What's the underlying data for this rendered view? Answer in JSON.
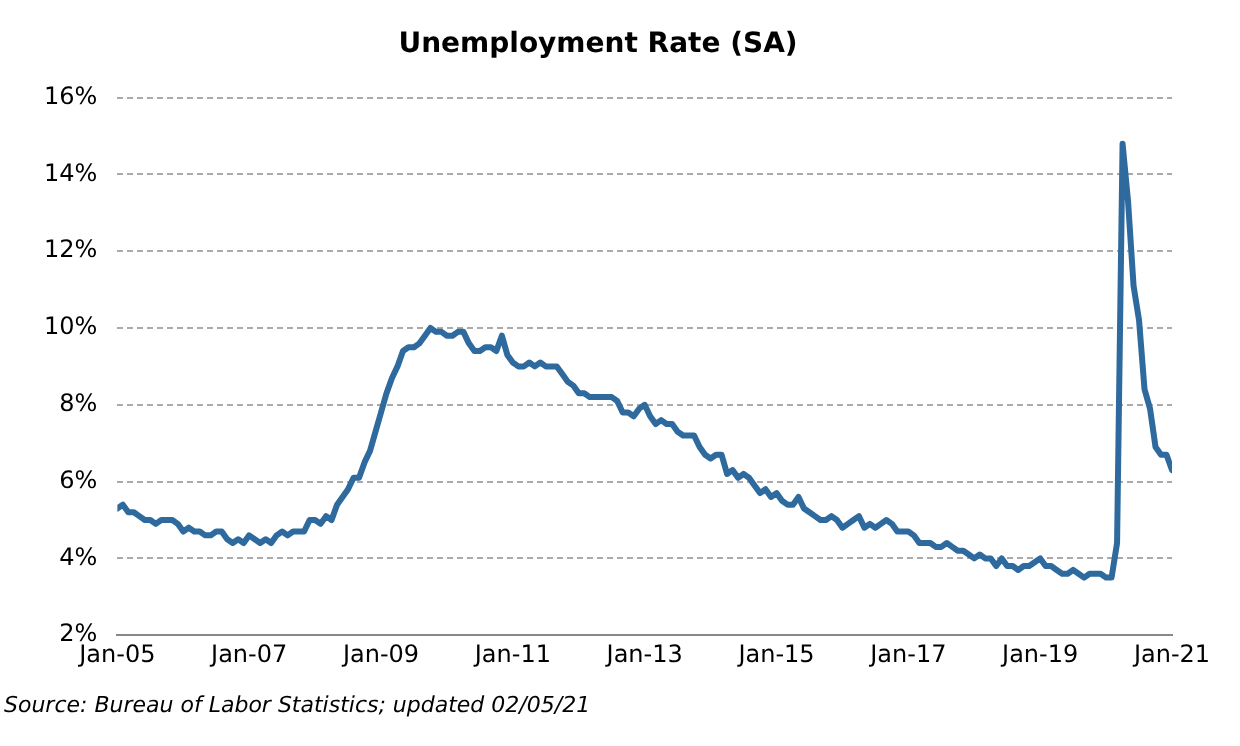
{
  "chart_data": {
    "type": "line",
    "title": "Unemployment Rate (SA)",
    "x": [
      "2005-01",
      "2005-02",
      "2005-03",
      "2005-04",
      "2005-05",
      "2005-06",
      "2005-07",
      "2005-08",
      "2005-09",
      "2005-10",
      "2005-11",
      "2005-12",
      "2006-01",
      "2006-02",
      "2006-03",
      "2006-04",
      "2006-05",
      "2006-06",
      "2006-07",
      "2006-08",
      "2006-09",
      "2006-10",
      "2006-11",
      "2006-12",
      "2007-01",
      "2007-02",
      "2007-03",
      "2007-04",
      "2007-05",
      "2007-06",
      "2007-07",
      "2007-08",
      "2007-09",
      "2007-10",
      "2007-11",
      "2007-12",
      "2008-01",
      "2008-02",
      "2008-03",
      "2008-04",
      "2008-05",
      "2008-06",
      "2008-07",
      "2008-08",
      "2008-09",
      "2008-10",
      "2008-11",
      "2008-12",
      "2009-01",
      "2009-02",
      "2009-03",
      "2009-04",
      "2009-05",
      "2009-06",
      "2009-07",
      "2009-08",
      "2009-09",
      "2009-10",
      "2009-11",
      "2009-12",
      "2010-01",
      "2010-02",
      "2010-03",
      "2010-04",
      "2010-05",
      "2010-06",
      "2010-07",
      "2010-08",
      "2010-09",
      "2010-10",
      "2010-11",
      "2010-12",
      "2011-01",
      "2011-02",
      "2011-03",
      "2011-04",
      "2011-05",
      "2011-06",
      "2011-07",
      "2011-08",
      "2011-09",
      "2011-10",
      "2011-11",
      "2011-12",
      "2012-01",
      "2012-02",
      "2012-03",
      "2012-04",
      "2012-05",
      "2012-06",
      "2012-07",
      "2012-08",
      "2012-09",
      "2012-10",
      "2012-11",
      "2012-12",
      "2013-01",
      "2013-02",
      "2013-03",
      "2013-04",
      "2013-05",
      "2013-06",
      "2013-07",
      "2013-08",
      "2013-09",
      "2013-10",
      "2013-11",
      "2013-12",
      "2014-01",
      "2014-02",
      "2014-03",
      "2014-04",
      "2014-05",
      "2014-06",
      "2014-07",
      "2014-08",
      "2014-09",
      "2014-10",
      "2014-11",
      "2014-12",
      "2015-01",
      "2015-02",
      "2015-03",
      "2015-04",
      "2015-05",
      "2015-06",
      "2015-07",
      "2015-08",
      "2015-09",
      "2015-10",
      "2015-11",
      "2015-12",
      "2016-01",
      "2016-02",
      "2016-03",
      "2016-04",
      "2016-05",
      "2016-06",
      "2016-07",
      "2016-08",
      "2016-09",
      "2016-10",
      "2016-11",
      "2016-12",
      "2017-01",
      "2017-02",
      "2017-03",
      "2017-04",
      "2017-05",
      "2017-06",
      "2017-07",
      "2017-08",
      "2017-09",
      "2017-10",
      "2017-11",
      "2017-12",
      "2018-01",
      "2018-02",
      "2018-03",
      "2018-04",
      "2018-05",
      "2018-06",
      "2018-07",
      "2018-08",
      "2018-09",
      "2018-10",
      "2018-11",
      "2018-12",
      "2019-01",
      "2019-02",
      "2019-03",
      "2019-04",
      "2019-05",
      "2019-06",
      "2019-07",
      "2019-08",
      "2019-09",
      "2019-10",
      "2019-11",
      "2019-12",
      "2020-01",
      "2020-02",
      "2020-03",
      "2020-04",
      "2020-05",
      "2020-06",
      "2020-07",
      "2020-08",
      "2020-09",
      "2020-10",
      "2020-11",
      "2020-12",
      "2021-01"
    ],
    "series": [
      {
        "color": "#2e6a9e",
        "values": [
          5.3,
          5.4,
          5.2,
          5.2,
          5.1,
          5.0,
          5.0,
          4.9,
          5.0,
          5.0,
          5.0,
          4.9,
          4.7,
          4.8,
          4.7,
          4.7,
          4.6,
          4.6,
          4.7,
          4.7,
          4.5,
          4.4,
          4.5,
          4.4,
          4.6,
          4.5,
          4.4,
          4.5,
          4.4,
          4.6,
          4.7,
          4.6,
          4.7,
          4.7,
          4.7,
          5.0,
          5.0,
          4.9,
          5.1,
          5.0,
          5.4,
          5.6,
          5.8,
          6.1,
          6.1,
          6.5,
          6.8,
          7.3,
          7.8,
          8.3,
          8.7,
          9.0,
          9.4,
          9.5,
          9.5,
          9.6,
          9.8,
          10.0,
          9.9,
          9.9,
          9.8,
          9.8,
          9.9,
          9.9,
          9.6,
          9.4,
          9.4,
          9.5,
          9.5,
          9.4,
          9.8,
          9.3,
          9.1,
          9.0,
          9.0,
          9.1,
          9.0,
          9.1,
          9.0,
          9.0,
          9.0,
          8.8,
          8.6,
          8.5,
          8.3,
          8.3,
          8.2,
          8.2,
          8.2,
          8.2,
          8.2,
          8.1,
          7.8,
          7.8,
          7.7,
          7.9,
          8.0,
          7.7,
          7.5,
          7.6,
          7.5,
          7.5,
          7.3,
          7.2,
          7.2,
          7.2,
          6.9,
          6.7,
          6.6,
          6.7,
          6.7,
          6.2,
          6.3,
          6.1,
          6.2,
          6.1,
          5.9,
          5.7,
          5.8,
          5.6,
          5.7,
          5.5,
          5.4,
          5.4,
          5.6,
          5.3,
          5.2,
          5.1,
          5.0,
          5.0,
          5.1,
          5.0,
          4.8,
          4.9,
          5.0,
          5.1,
          4.8,
          4.9,
          4.8,
          4.9,
          5.0,
          4.9,
          4.7,
          4.7,
          4.7,
          4.6,
          4.4,
          4.4,
          4.4,
          4.3,
          4.3,
          4.4,
          4.3,
          4.2,
          4.2,
          4.1,
          4.0,
          4.1,
          4.0,
          4.0,
          3.8,
          4.0,
          3.8,
          3.8,
          3.7,
          3.8,
          3.8,
          3.9,
          4.0,
          3.8,
          3.8,
          3.7,
          3.6,
          3.6,
          3.7,
          3.6,
          3.5,
          3.6,
          3.6,
          3.6,
          3.5,
          3.5,
          4.4,
          14.8,
          13.3,
          11.1,
          10.2,
          8.4,
          7.9,
          6.9,
          6.7,
          6.7,
          6.3
        ]
      }
    ],
    "xlim": [
      "2005-01",
      "2021-01"
    ],
    "xticks": [
      {
        "value": "2005-01",
        "label": "Jan-05"
      },
      {
        "value": "2007-01",
        "label": "Jan-07"
      },
      {
        "value": "2009-01",
        "label": "Jan-09"
      },
      {
        "value": "2011-01",
        "label": "Jan-11"
      },
      {
        "value": "2013-01",
        "label": "Jan-13"
      },
      {
        "value": "2015-01",
        "label": "Jan-15"
      },
      {
        "value": "2017-01",
        "label": "Jan-17"
      },
      {
        "value": "2019-01",
        "label": "Jan-19"
      },
      {
        "value": "2021-01",
        "label": "Jan-21"
      }
    ],
    "ylim": [
      2,
      16
    ],
    "yticks": [
      {
        "value": 2,
        "label": "2%"
      },
      {
        "value": 4,
        "label": "4%"
      },
      {
        "value": 6,
        "label": "6%"
      },
      {
        "value": 8,
        "label": "8%"
      },
      {
        "value": 10,
        "label": "10%"
      },
      {
        "value": 12,
        "label": "12%"
      },
      {
        "value": 14,
        "label": "14%"
      },
      {
        "value": 16,
        "label": "16%"
      }
    ],
    "grid": "y",
    "legend": false,
    "marker": "none",
    "line_style": "solid",
    "annotations": [
      "Source: Bureau of Labor Statistics; updated 02/05/21"
    ]
  }
}
